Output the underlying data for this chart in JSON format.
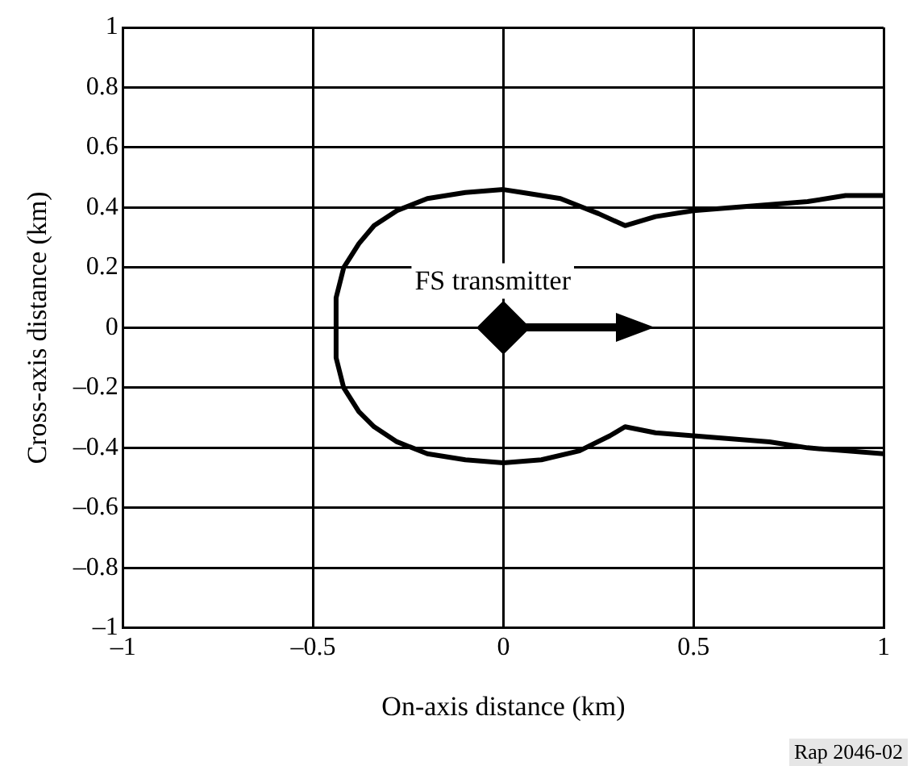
{
  "chart_data": {
    "type": "line",
    "xlabel": "On-axis distance (km)",
    "ylabel": "Cross-axis distance (km)",
    "xlim": [
      -1,
      1
    ],
    "ylim": [
      -1,
      1
    ],
    "xticks": [
      {
        "value": -1,
        "label": "–1"
      },
      {
        "value": -0.5,
        "label": "–0.5"
      },
      0,
      0.5,
      1
    ],
    "yticks": [
      {
        "value": -1,
        "label": "–1"
      },
      {
        "value": -0.8,
        "label": "–0.8"
      },
      {
        "value": -0.6,
        "label": "–0.6"
      },
      {
        "value": -0.4,
        "label": "–0.4"
      },
      {
        "value": -0.2,
        "label": "–0.2"
      },
      0,
      0.2,
      0.4,
      0.6,
      0.8,
      1
    ],
    "grid": true,
    "legend": false,
    "series": [
      {
        "color": "#000000",
        "marker": "none",
        "line_style": "solid",
        "x": [
          1,
          0.9,
          0.8,
          0.7,
          0.6,
          0.5,
          0.4,
          0.32,
          0.25,
          0.15,
          0.05,
          0,
          -0.1,
          -0.2,
          -0.28,
          -0.34,
          -0.38,
          -0.42,
          -0.44,
          -0.44,
          -0.42,
          -0.38,
          -0.34,
          -0.28,
          -0.2,
          -0.1,
          0,
          0.1,
          0.2,
          0.28,
          0.32,
          0.4,
          0.5,
          0.6,
          0.7,
          0.8,
          0.9,
          1
        ],
        "values": [
          0.44,
          0.44,
          0.42,
          0.41,
          0.4,
          0.39,
          0.37,
          0.34,
          0.38,
          0.43,
          0.45,
          0.46,
          0.45,
          0.43,
          0.39,
          0.34,
          0.28,
          0.2,
          0.1,
          -0.1,
          -0.2,
          -0.28,
          -0.33,
          -0.38,
          -0.42,
          -0.44,
          -0.45,
          -0.44,
          -0.41,
          -0.36,
          -0.33,
          -0.35,
          -0.36,
          -0.37,
          -0.38,
          -0.4,
          -0.41,
          -0.42
        ]
      },
      {
        "type": "scatter",
        "color": "#000000",
        "marker": "diamond",
        "x": [
          0
        ],
        "values": [
          0
        ]
      }
    ],
    "annotations": [
      {
        "text": "FS transmitter",
        "x": 0,
        "y": 0
      },
      "Rap 2046-02"
    ]
  }
}
